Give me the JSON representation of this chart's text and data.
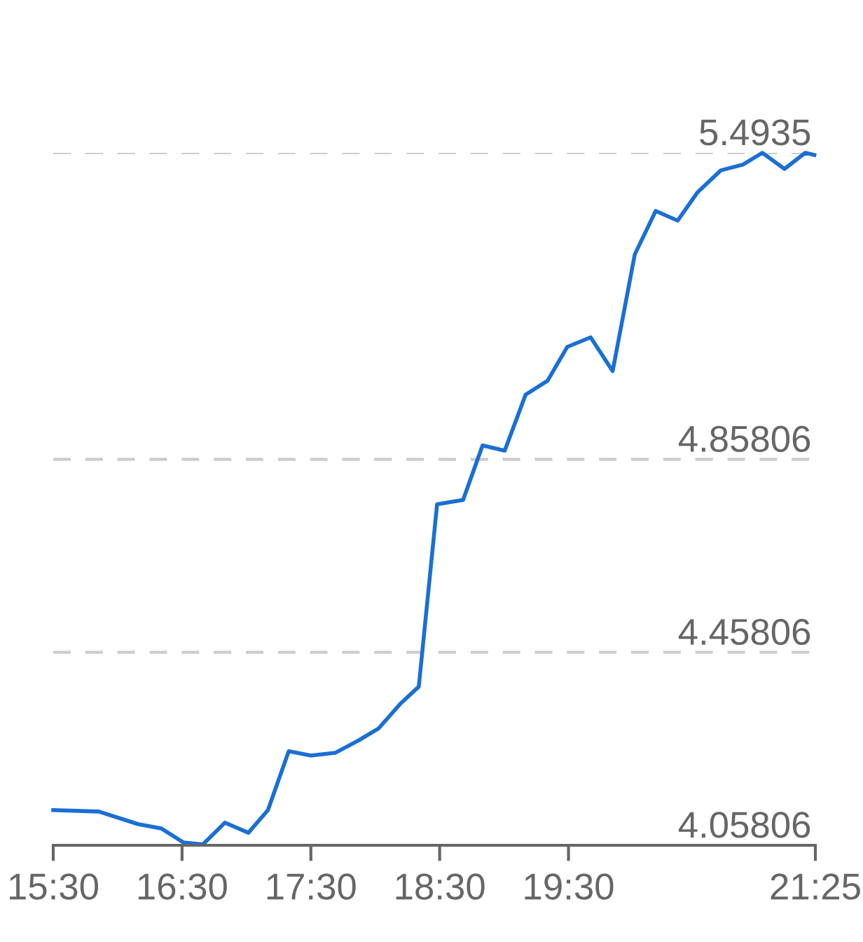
{
  "chart_data": {
    "type": "line",
    "x": [
      15.5,
      15.854,
      16.157,
      16.338,
      16.51,
      16.662,
      16.833,
      17.015,
      17.167,
      17.328,
      17.5,
      17.692,
      17.874,
      18.025,
      18.197,
      18.338,
      18.48,
      18.682,
      18.833,
      19.005,
      19.167,
      19.338,
      19.49,
      19.672,
      19.843,
      20.015,
      20.177,
      20.348,
      20.5,
      20.682,
      20.854,
      21.005,
      21.177,
      21.338,
      21.409
    ],
    "series": [
      {
        "color": "#1a6fd4",
        "values": [
          4.131,
          4.128,
          4.102,
          4.093,
          4.064,
          4.06,
          4.105,
          4.084,
          4.131,
          4.253,
          4.244,
          4.25,
          4.276,
          4.3,
          4.352,
          4.387,
          4.765,
          4.774,
          4.887,
          4.876,
          4.992,
          5.021,
          5.091,
          5.111,
          5.041,
          5.283,
          5.373,
          5.353,
          5.411,
          5.457,
          5.469,
          5.4935,
          5.46,
          5.4935,
          5.489
        ]
      }
    ],
    "xlim": [
      15.5,
      21.4167
    ],
    "xticks": [
      {
        "value": 15.5,
        "label": "15:30"
      },
      {
        "value": 16.5,
        "label": "16:30"
      },
      {
        "value": 17.5,
        "label": "17:30"
      },
      {
        "value": 18.5,
        "label": "18:30"
      },
      {
        "value": 19.5,
        "label": "19:30"
      },
      {
        "value": 21.4167,
        "label": "21:25"
      }
    ],
    "ylim": [
      4.05806,
      5.4935
    ],
    "yticks": [
      4.05806,
      4.45806,
      4.85806,
      5.4935
    ],
    "grid": "y",
    "legend": false,
    "marker": "none",
    "line_style": "solid"
  }
}
